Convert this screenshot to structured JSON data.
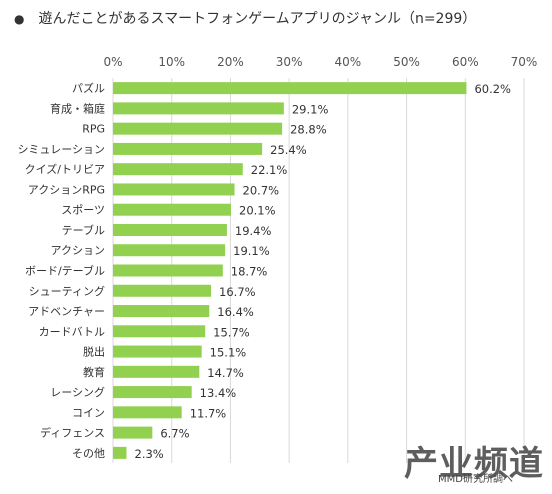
{
  "header": {
    "bullet": "●",
    "title": "遊んだことがあるスマートフォンゲームアプリのジャンル（n=299）"
  },
  "watermark": {
    "source": "MMD研究所調べ",
    "logo": "产业频道"
  },
  "colors": {
    "bar": "#92D050",
    "grid": "#d9d9d9"
  },
  "chart_data": {
    "type": "bar",
    "orientation": "horizontal",
    "title": "遊んだことがあるスマートフォンゲームアプリのジャンル（n=299）",
    "xlim": [
      0,
      70
    ],
    "x_ticks": [
      "0%",
      "10%",
      "20%",
      "30%",
      "40%",
      "50%",
      "60%",
      "70%"
    ],
    "grid": true,
    "categories": [
      "パズル",
      "育成・箱庭",
      "RPG",
      "シミュレーション",
      "クイズ/トリビア",
      "アクションRPG",
      "スポーツ",
      "テーブル",
      "アクション",
      "ボード/テーブル",
      "シューティング",
      "アドベンチャー",
      "カードバトル",
      "脱出",
      "教育",
      "レーシング",
      "コイン",
      "ディフェンス",
      "その他"
    ],
    "values": [
      60.2,
      29.1,
      28.8,
      25.4,
      22.1,
      20.7,
      20.1,
      19.4,
      19.1,
      18.7,
      16.7,
      16.4,
      15.7,
      15.1,
      14.7,
      13.4,
      11.7,
      6.7,
      2.3
    ],
    "value_labels": [
      "60.2%",
      "29.1%",
      "28.8%",
      "25.4%",
      "22.1%",
      "20.7%",
      "20.1%",
      "19.4%",
      "19.1%",
      "18.7%",
      "16.7%",
      "16.4%",
      "15.7%",
      "15.1%",
      "14.7%",
      "13.4%",
      "11.7%",
      "6.7%",
      "2.3%"
    ]
  }
}
